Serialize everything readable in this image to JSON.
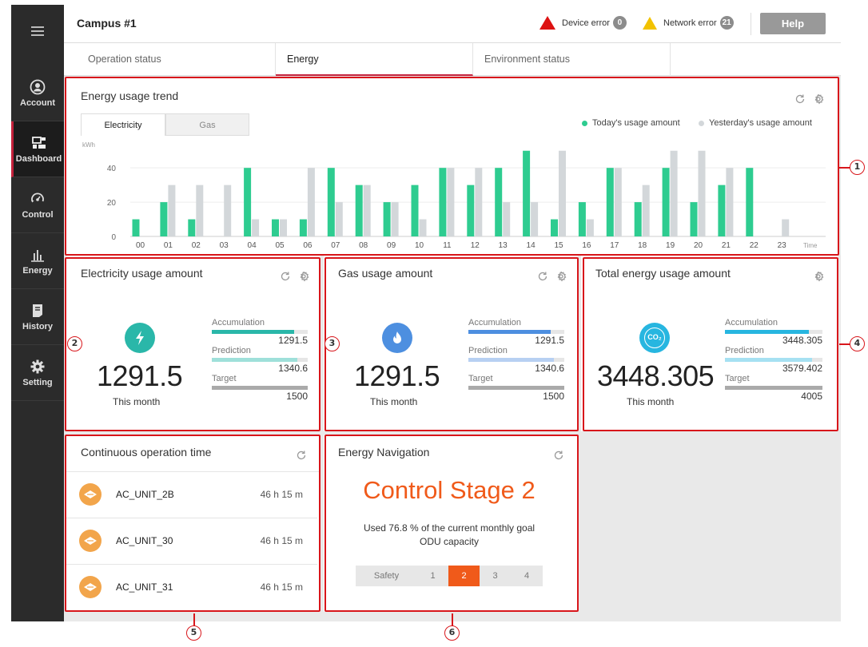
{
  "header": {
    "title": "Campus #1",
    "device_error_label": "Device error",
    "device_error_count": "0",
    "network_error_label": "Network error",
    "network_error_count": "21",
    "help_label": "Help"
  },
  "sidebar": {
    "items": [
      {
        "label": "Account",
        "icon": "account-icon"
      },
      {
        "label": "Dashboard",
        "icon": "dashboard-icon"
      },
      {
        "label": "Control",
        "icon": "control-icon"
      },
      {
        "label": "Energy",
        "icon": "energy-icon"
      },
      {
        "label": "History",
        "icon": "history-icon"
      },
      {
        "label": "Setting",
        "icon": "setting-icon"
      }
    ],
    "active": "Dashboard"
  },
  "tabs": [
    {
      "label": "Operation status"
    },
    {
      "label": "Energy"
    },
    {
      "label": "Environment status"
    }
  ],
  "trend": {
    "title": "Energy usage trend",
    "subtabs": [
      "Electricity",
      "Gas"
    ],
    "legend_today": "Today's usage amount",
    "legend_yesterday": "Yesterday's usage amount",
    "unit": "kWh",
    "x_suffix": "Time"
  },
  "chart_data": {
    "type": "bar",
    "categories": [
      "00",
      "01",
      "02",
      "03",
      "04",
      "05",
      "06",
      "07",
      "08",
      "09",
      "10",
      "11",
      "12",
      "13",
      "14",
      "15",
      "16",
      "17",
      "18",
      "19",
      "20",
      "21",
      "22",
      "23"
    ],
    "series": [
      {
        "name": "Today's usage amount",
        "color": "#2ecc90",
        "values": [
          10,
          20,
          10,
          0,
          40,
          10,
          10,
          40,
          30,
          20,
          30,
          40,
          30,
          40,
          50,
          10,
          20,
          40,
          20,
          40,
          20,
          30,
          40,
          0
        ]
      },
      {
        "name": "Yesterday's usage amount",
        "color": "#d3d7da",
        "values": [
          0,
          30,
          30,
          30,
          10,
          10,
          40,
          20,
          30,
          20,
          10,
          40,
          40,
          20,
          20,
          50,
          10,
          40,
          30,
          50,
          50,
          40,
          0,
          10
        ]
      }
    ],
    "yticks": [
      0,
      20,
      40
    ],
    "ylim": [
      0,
      55
    ]
  },
  "electricity": {
    "title": "Electricity usage amount",
    "value": "1291.5",
    "period": "This month",
    "accumulation_label": "Accumulation",
    "accumulation_value": "1291.5",
    "accumulation_fill": 0.86,
    "prediction_label": "Prediction",
    "prediction_value": "1340.6",
    "prediction_fill": 0.89,
    "target_label": "Target",
    "target_value": "1500",
    "target_fill": 1.0,
    "color_main": "#2ab7a9",
    "color_light": "#9fe0da"
  },
  "gas": {
    "title": "Gas usage amount",
    "value": "1291.5",
    "period": "This month",
    "accumulation_label": "Accumulation",
    "accumulation_value": "1291.5",
    "accumulation_fill": 0.86,
    "prediction_label": "Prediction",
    "prediction_value": "1340.6",
    "prediction_fill": 0.89,
    "target_label": "Target",
    "target_value": "1500",
    "target_fill": 1.0,
    "color_main": "#4d8fe0",
    "color_light": "#b7d0f2"
  },
  "total": {
    "title": "Total energy usage amount",
    "value": "3448.305",
    "period": "This month",
    "accumulation_label": "Accumulation",
    "accumulation_value": "3448.305",
    "accumulation_fill": 0.86,
    "prediction_label": "Prediction",
    "prediction_value": "3579.402",
    "prediction_fill": 0.89,
    "target_label": "Target",
    "target_value": "4005",
    "target_fill": 1.0,
    "color_main": "#27b6e0",
    "color_light": "#a6e1f2",
    "icon_text": "CO₂"
  },
  "continuous": {
    "title": "Continuous operation time",
    "rows": [
      {
        "name": "AC_UNIT_2B",
        "time": "46 h 15 m"
      },
      {
        "name": "AC_UNIT_30",
        "time": "46 h 15 m"
      },
      {
        "name": "AC_UNIT_31",
        "time": "46 h 15 m"
      }
    ]
  },
  "navigation": {
    "title": "Energy Navigation",
    "stage_title": "Control Stage 2",
    "desc_line1": "Used 76.8 % of the current monthly goal",
    "desc_line2": "ODU capacity",
    "stages": [
      "Safety",
      "1",
      "2",
      "3",
      "4"
    ],
    "active_stage": "2",
    "accent": "#f05a1a"
  },
  "callouts": [
    "1",
    "2",
    "3",
    "4",
    "5",
    "6"
  ]
}
